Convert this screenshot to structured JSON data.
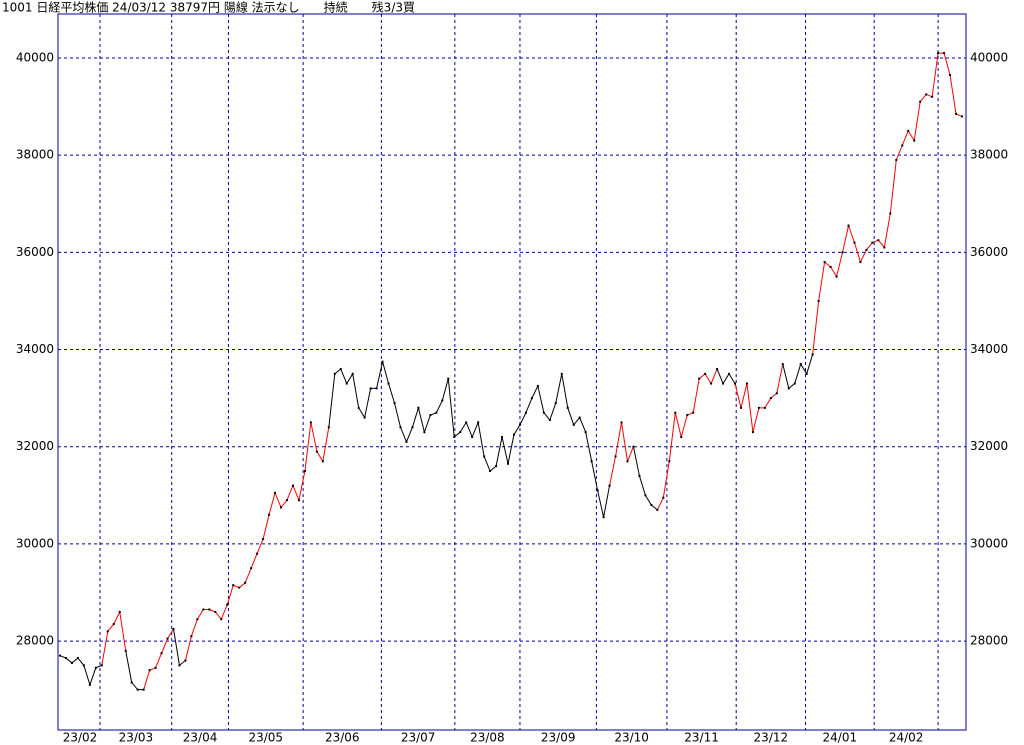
{
  "chart_data": {
    "type": "line",
    "title": "1001 日経平均株価 24/03/12 38797円 陽線 法示なし　　持続　　残3/3買",
    "values": [
      27700,
      27650,
      27550,
      27650,
      27500,
      27100,
      27450,
      27500,
      28200,
      28350,
      28600,
      27800,
      27150,
      27000,
      27000,
      27400,
      27450,
      27750,
      28050,
      28250,
      27500,
      27600,
      28100,
      28450,
      28650,
      28650,
      28600,
      28450,
      28750,
      29150,
      29100,
      29200,
      29500,
      29800,
      30100,
      30600,
      31050,
      30750,
      30900,
      31200,
      30900,
      31500,
      32500,
      31900,
      31700,
      32400,
      33500,
      33600,
      33300,
      33500,
      32800,
      32600,
      33200,
      33200,
      33750,
      33300,
      32900,
      32400,
      32100,
      32400,
      32800,
      32300,
      32650,
      32700,
      32950,
      33400,
      32200,
      32300,
      32500,
      32200,
      32500,
      31800,
      31500,
      31600,
      32200,
      31650,
      32250,
      32450,
      32700,
      33000,
      33250,
      32700,
      32550,
      32900,
      33500,
      32800,
      32450,
      32600,
      32300,
      31700,
      31100,
      30550,
      31200,
      31800,
      32500,
      31700,
      32000,
      31400,
      31000,
      30800,
      30700,
      30950,
      31700,
      32700,
      32200,
      32650,
      32700,
      33400,
      33500,
      33300,
      33600,
      33300,
      33500,
      33300,
      32800,
      33300,
      32300,
      32800,
      32800,
      33000,
      33100,
      33700,
      33200,
      33300,
      33700,
      33500,
      33900,
      35000,
      35800,
      35700,
      35500,
      36000,
      36550,
      36200,
      35800,
      36050,
      36200,
      36250,
      36100,
      36800,
      37900,
      38200,
      38500,
      38300,
      39100,
      39250,
      39200,
      40100,
      40100,
      39650,
      38850,
      38797
    ],
    "up_ranges": [
      [
        7,
        11
      ],
      [
        14,
        19
      ],
      [
        21,
        45
      ],
      [
        92,
        96
      ],
      [
        100,
        110
      ],
      [
        113,
        121
      ],
      [
        126,
        151
      ]
    ],
    "line_color": "#000000",
    "up_color": "#ff0000",
    "months": [
      "23/02",
      "23/03",
      "23/04",
      "23/05",
      "23/06",
      "23/07",
      "23/08",
      "23/09",
      "23/10",
      "23/11",
      "23/12",
      "24/01",
      "24/02"
    ],
    "month_lines": [
      6.7,
      18.7,
      28.2,
      40.7,
      53.8,
      66.1,
      77.0,
      89.8,
      101.6,
      113.2,
      124.8,
      136.3,
      147
    ],
    "xlim": [
      0,
      151
    ],
    "ylim": [
      26170,
      40905
    ],
    "yticks": [
      28000,
      30000,
      32000,
      34000,
      36000,
      38000,
      40000
    ],
    "grid": true
  }
}
